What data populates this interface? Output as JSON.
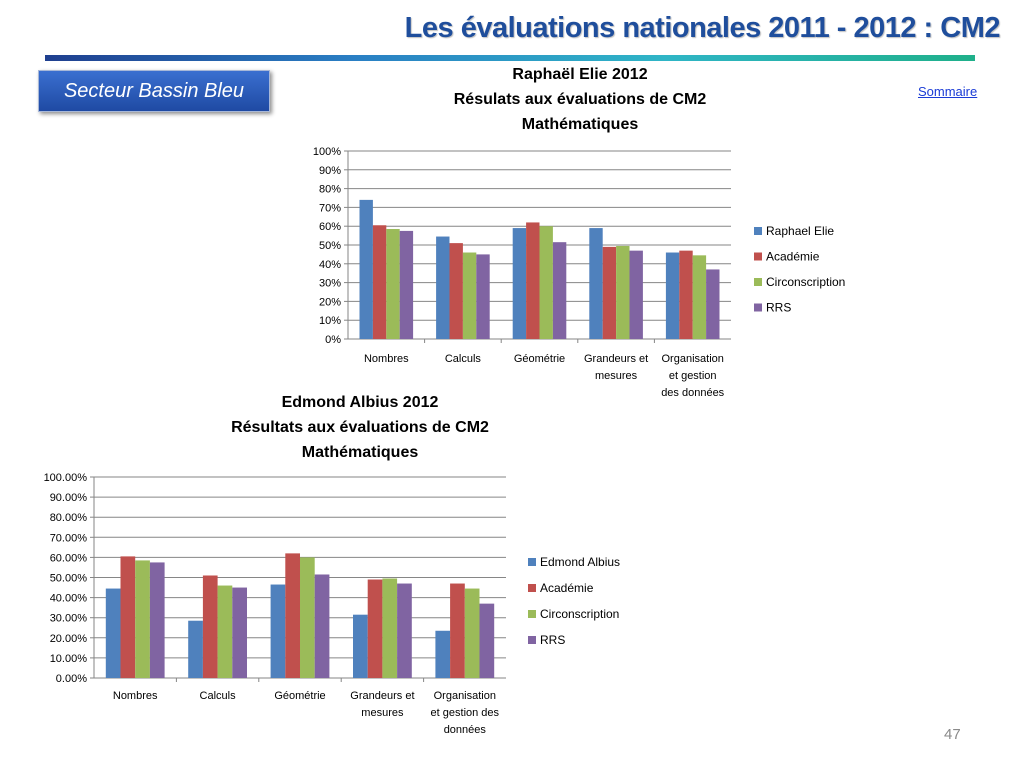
{
  "slide": {
    "title": "Les évaluations nationales 2011 - 2012  : CM2",
    "sector_label": "Secteur  Bassin Bleu",
    "summary_link": "Sommaire",
    "page_number": "47"
  },
  "colors": {
    "series": [
      "#4f81bd",
      "#c0504d",
      "#9bbb59",
      "#8064a2"
    ],
    "gridline": "#868686",
    "title_blue": "#1f4e9c"
  },
  "chart_data": [
    {
      "type": "bar",
      "title_lines": [
        "Raphaël Elie 2012",
        "Résulats aux évaluations de CM2",
        "Mathématiques"
      ],
      "categories": [
        [
          "Nombres"
        ],
        [
          "Calculs"
        ],
        [
          "Géométrie"
        ],
        [
          "Grandeurs et",
          "mesures"
        ],
        [
          "Organisation",
          "et gestion",
          "des données"
        ]
      ],
      "series": [
        {
          "name": "Raphael Elie",
          "values": [
            74,
            54.5,
            59,
            59,
            46
          ]
        },
        {
          "name": "Académie",
          "values": [
            60.5,
            51,
            62,
            49,
            47
          ]
        },
        {
          "name": "Circonscription",
          "values": [
            58.5,
            46,
            60,
            49.5,
            44.5
          ]
        },
        {
          "name": "RRS",
          "values": [
            57.5,
            45,
            51.5,
            47,
            37
          ]
        }
      ],
      "ylim": [
        0,
        100
      ],
      "yticks": [
        "0%",
        "10%",
        "20%",
        "30%",
        "40%",
        "50%",
        "60%",
        "70%",
        "80%",
        "90%",
        "100%"
      ],
      "grid": true,
      "legend": "right"
    },
    {
      "type": "bar",
      "title_lines": [
        "Edmond Albius 2012",
        "Résultats aux évaluations de CM2",
        "Mathématiques"
      ],
      "categories": [
        [
          "Nombres"
        ],
        [
          "Calculs"
        ],
        [
          "Géométrie"
        ],
        [
          "Grandeurs et",
          "mesures"
        ],
        [
          "Organisation",
          "et gestion des",
          "données"
        ]
      ],
      "series": [
        {
          "name": "Edmond Albius",
          "values": [
            44.5,
            28.5,
            46.5,
            31.5,
            23.5
          ]
        },
        {
          "name": "Académie",
          "values": [
            60.5,
            51,
            62,
            49,
            47
          ]
        },
        {
          "name": "Circonscription",
          "values": [
            58.5,
            46,
            60,
            49.5,
            44.5
          ]
        },
        {
          "name": "RRS",
          "values": [
            57.5,
            45,
            51.5,
            47,
            37
          ]
        }
      ],
      "ylim": [
        0,
        100
      ],
      "yticks": [
        "0.00%",
        "10.00%",
        "20.00%",
        "30.00%",
        "40.00%",
        "50.00%",
        "60.00%",
        "70.00%",
        "80.00%",
        "90.00%",
        "100.00%"
      ],
      "grid": true,
      "legend": "right"
    }
  ]
}
